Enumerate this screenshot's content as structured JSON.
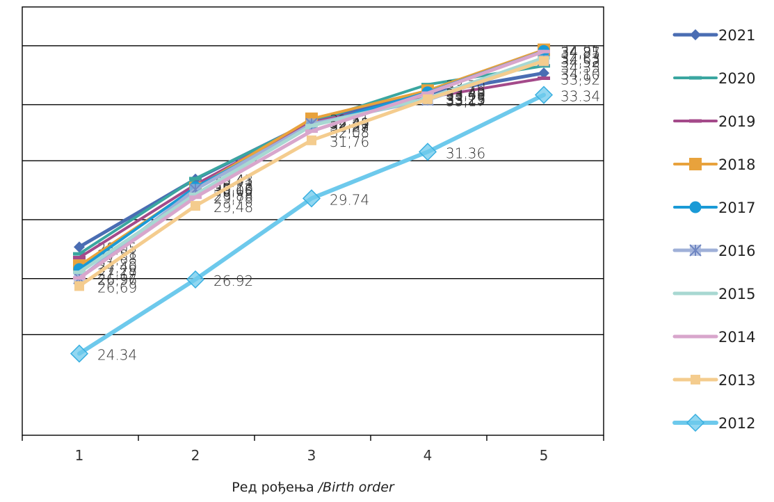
{
  "chart_data": {
    "type": "line",
    "x": [
      1,
      2,
      3,
      4,
      5
    ],
    "xticks": [
      "1",
      "2",
      "3",
      "4",
      "5"
    ],
    "xlabel_main": "Ред рођења",
    "xlabel_italic": "/Birth order",
    "ylim": [
      21.5,
      36.4
    ],
    "gridlines": [
      25.0,
      26.95,
      29.0,
      31.05,
      33.0,
      35.05
    ],
    "legend_position": "right",
    "series": [
      {
        "name": "2021",
        "color": "#4a6db3",
        "marker": "diamond",
        "width": 5,
        "values": [
          28.05,
          30.41,
          32.41,
          33.39,
          34.1
        ],
        "labels": [
          "28,05",
          "30,41",
          "32,41",
          "33,39",
          "34,10"
        ]
      },
      {
        "name": "2020",
        "color": "#3aa6a0",
        "marker": "dash",
        "width": 4,
        "values": [
          27.81,
          30.43,
          32.4,
          33.7,
          34.35
        ],
        "labels": [
          "27,81",
          "30,43",
          "32,40",
          "33,70",
          "34,35"
        ]
      },
      {
        "name": "2019",
        "color": "#a44a8a",
        "marker": "dash",
        "width": 4,
        "values": [
          27.68,
          30.22,
          32.39,
          33.25,
          33.92
        ],
        "labels": [
          "27,68",
          "30,22",
          "32,39",
          "33,25",
          "33,92"
        ]
      },
      {
        "name": "2018",
        "color": "#e8a23c",
        "marker": "square",
        "width": 4,
        "values": [
          27.4,
          30.1,
          32.51,
          33.49,
          34.91
        ],
        "labels": [
          "27,40",
          "30,10",
          "32,51",
          "33,49",
          "34,91"
        ]
      },
      {
        "name": "2017",
        "color": "#1a9ad6",
        "marker": "circle",
        "width": 4,
        "values": [
          27.28,
          30.13,
          32.27,
          33.43,
          34.87
        ],
        "labels": [
          "27,28",
          "30,13",
          "32,27",
          "33,43",
          "34,87"
        ]
      },
      {
        "name": "2016",
        "color": "#9fb0d8",
        "marker": "star",
        "width": 5,
        "values": [
          26.96,
          30.05,
          32.33,
          33.17,
          34.53
        ],
        "labels": [
          "26,96",
          "30,05",
          "32,33",
          "33,17",
          "34,53"
        ]
      },
      {
        "name": "2015",
        "color": "#a8d8d2",
        "marker": "dash",
        "width": 5,
        "values": [
          27.17,
          29.88,
          32.27,
          33.23,
          34.63
        ],
        "labels": [
          "27,17",
          "29,88",
          "32,27",
          "33,23",
          "34,63"
        ]
      },
      {
        "name": "2014",
        "color": "#d8a6cc",
        "marker": "dash",
        "width": 5,
        "values": [
          26.97,
          29.78,
          32.08,
          33.4,
          34.85
        ],
        "labels": [
          "26,97",
          "29,78",
          "32,08",
          "33,40",
          "34,85"
        ]
      },
      {
        "name": "2013",
        "color": "#f4cc8e",
        "marker": "square-small",
        "width": 5,
        "values": [
          26.69,
          29.48,
          31.76,
          33.19,
          34.52
        ],
        "labels": [
          "26,69",
          "29,48",
          "31,76",
          "33,19",
          "34,52"
        ]
      },
      {
        "name": "2012",
        "color": "#6dc9ec",
        "marker": "diamond-large",
        "width": 6,
        "values": [
          24.34,
          26.92,
          29.74,
          31.36,
          33.34
        ],
        "labels": [
          "24.34",
          "26.92",
          "29.74",
          "31.36",
          "33.34"
        ]
      }
    ]
  }
}
